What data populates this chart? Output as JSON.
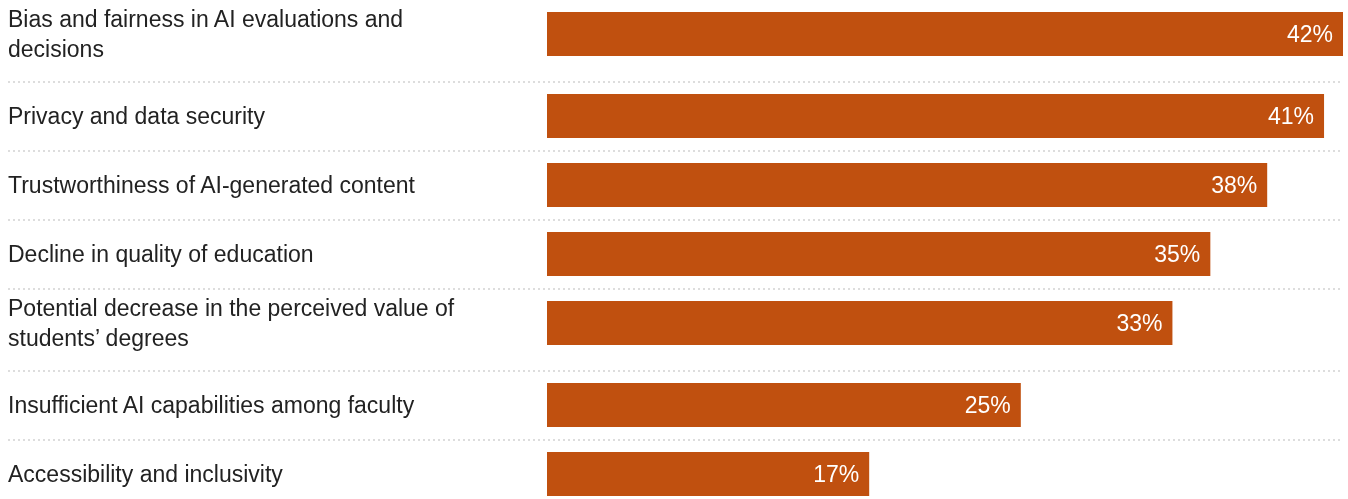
{
  "chart_data": {
    "type": "bar",
    "orientation": "horizontal",
    "categories": [
      "Bias and fairness in AI evaluations and decisions",
      "Privacy and data security",
      "Trustworthiness of AI-generated content",
      "Decline in quality of education",
      "Potential decrease in the perceived value of students’ degrees",
      "Insufficient AI capabilities among faculty",
      "Accessibility and inclusivity"
    ],
    "values": [
      42,
      41,
      38,
      35,
      33,
      25,
      17
    ],
    "value_labels": [
      "42%",
      "41%",
      "38%",
      "35%",
      "33%",
      "25%",
      "17%"
    ],
    "color": "#c0500f"
  }
}
